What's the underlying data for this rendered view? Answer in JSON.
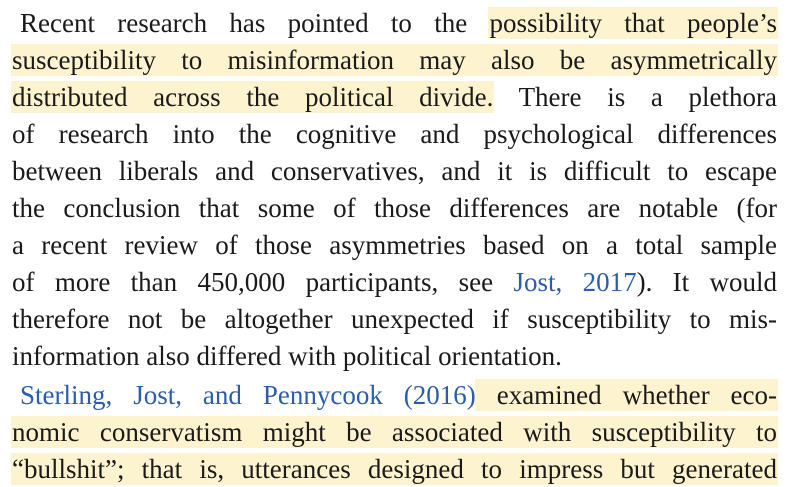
{
  "paragraph1": {
    "lines": [
      {
        "pre": "Recent research has pointed to the ",
        "hl": "possibility that people’s"
      },
      {
        "hl": "susceptibility to misinformation may also be asymmetrically"
      },
      {
        "hl": "distributed across the political divide.",
        "post": " There is a plethora"
      },
      {
        "pre": "of research into the cognitive and psychological differences"
      },
      {
        "pre": "between liberals and conservatives, and it is difficult to escape"
      },
      {
        "pre": "the conclusion that some of those differences are notable (for"
      },
      {
        "pre": "a recent review of those asymmetries based on a total sample"
      },
      {
        "pre": "of more than 450,000 participants, see ",
        "cite": "Jost, 2017",
        "post": "). It would"
      },
      {
        "pre": "therefore not be altogether unexpected if susceptibility to mis-"
      },
      {
        "pre": "information also differed with political orientation."
      }
    ]
  },
  "paragraph2": {
    "lines": [
      {
        "cite": "Sterling, Jost, and Pennycook (2016)",
        "hl": " examined whether eco-"
      },
      {
        "hl": "nomic conservatism might be associated with susceptibility to"
      },
      {
        "hl": "“bullshit”; that is, utterances designed to impress but generated"
      }
    ]
  }
}
